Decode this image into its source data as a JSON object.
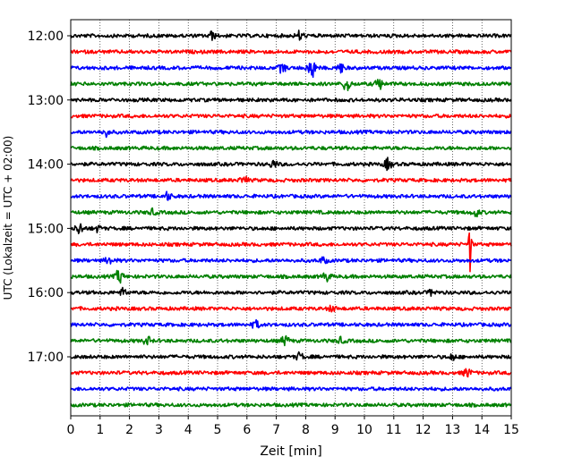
{
  "chart_data": {
    "type": "line",
    "title": "",
    "xlabel": "Zeit  [min]",
    "ylabel": "UTC (Lokalzeit = UTC + 02:00)",
    "xlim": [
      0,
      15
    ],
    "x_ticks": [
      0,
      1,
      2,
      3,
      4,
      5,
      6,
      7,
      8,
      9,
      10,
      11,
      12,
      13,
      14,
      15
    ],
    "x_tick_labels": [
      "0",
      "1",
      "2",
      "3",
      "4",
      "5",
      "6",
      "7",
      "8",
      "9",
      "10",
      "11",
      "12",
      "13",
      "14",
      "15"
    ],
    "y_tick_labels": [
      "12:00",
      "13:00",
      "14:00",
      "15:00",
      "16:00",
      "17:00"
    ],
    "y_tick_minutes": [
      0,
      60,
      120,
      180,
      240,
      300
    ],
    "start_time": "12:00",
    "trace_interval_min": 15,
    "grid": true,
    "color_cycle": [
      "#000000",
      "#ff0000",
      "#0000ff",
      "#008000"
    ],
    "traces": [
      {
        "start": "12:00",
        "events": [
          {
            "t": 4.8,
            "amp": 4
          },
          {
            "t": 7.8,
            "amp": 5
          }
        ]
      },
      {
        "start": "12:15",
        "events": []
      },
      {
        "start": "12:30",
        "events": [
          {
            "t": 7.2,
            "amp": 5
          },
          {
            "t": 8.2,
            "amp": 12
          },
          {
            "t": 9.2,
            "amp": 5
          }
        ]
      },
      {
        "start": "12:45",
        "events": [
          {
            "t": 9.4,
            "amp": 8
          },
          {
            "t": 10.5,
            "amp": 6
          }
        ]
      },
      {
        "start": "13:00",
        "events": []
      },
      {
        "start": "13:15",
        "events": []
      },
      {
        "start": "13:30",
        "events": [
          {
            "t": 1.2,
            "amp": 4
          }
        ]
      },
      {
        "start": "13:45",
        "events": []
      },
      {
        "start": "14:00",
        "events": [
          {
            "t": 6.9,
            "amp": 4
          },
          {
            "t": 10.8,
            "amp": 6
          }
        ]
      },
      {
        "start": "14:15",
        "events": [
          {
            "t": 5.9,
            "amp": 4
          }
        ]
      },
      {
        "start": "14:30",
        "events": [
          {
            "t": 3.3,
            "amp": 4
          }
        ]
      },
      {
        "start": "14:45",
        "events": [
          {
            "t": 2.8,
            "amp": 3
          },
          {
            "t": 13.8,
            "amp": 4
          }
        ]
      },
      {
        "start": "15:00",
        "events": [
          {
            "t": 0.3,
            "amp": 6
          },
          {
            "t": 0.9,
            "amp": 3
          }
        ]
      },
      {
        "start": "15:15",
        "events": [
          {
            "t": 13.6,
            "amp": 30
          }
        ]
      },
      {
        "start": "15:30",
        "events": [
          {
            "t": 1.3,
            "amp": 4
          },
          {
            "t": 8.6,
            "amp": 3
          }
        ]
      },
      {
        "start": "15:45",
        "events": [
          {
            "t": 1.65,
            "amp": 7
          },
          {
            "t": 8.7,
            "amp": 5
          }
        ]
      },
      {
        "start": "16:00",
        "events": [
          {
            "t": 1.8,
            "amp": 4
          },
          {
            "t": 12.3,
            "amp": 3
          }
        ]
      },
      {
        "start": "16:15",
        "events": [
          {
            "t": 8.9,
            "amp": 3
          }
        ]
      },
      {
        "start": "16:30",
        "events": [
          {
            "t": 6.3,
            "amp": 4
          }
        ]
      },
      {
        "start": "16:45",
        "events": [
          {
            "t": 2.6,
            "amp": 4
          },
          {
            "t": 7.3,
            "amp": 5
          },
          {
            "t": 9.2,
            "amp": 3
          }
        ]
      },
      {
        "start": "17:00",
        "events": [
          {
            "t": 7.8,
            "amp": 4
          },
          {
            "t": 13.0,
            "amp": 3
          }
        ]
      },
      {
        "start": "17:15",
        "events": [
          {
            "t": 13.5,
            "amp": 5
          }
        ]
      },
      {
        "start": "17:30",
        "events": []
      },
      {
        "start": "17:45",
        "events": []
      }
    ]
  }
}
